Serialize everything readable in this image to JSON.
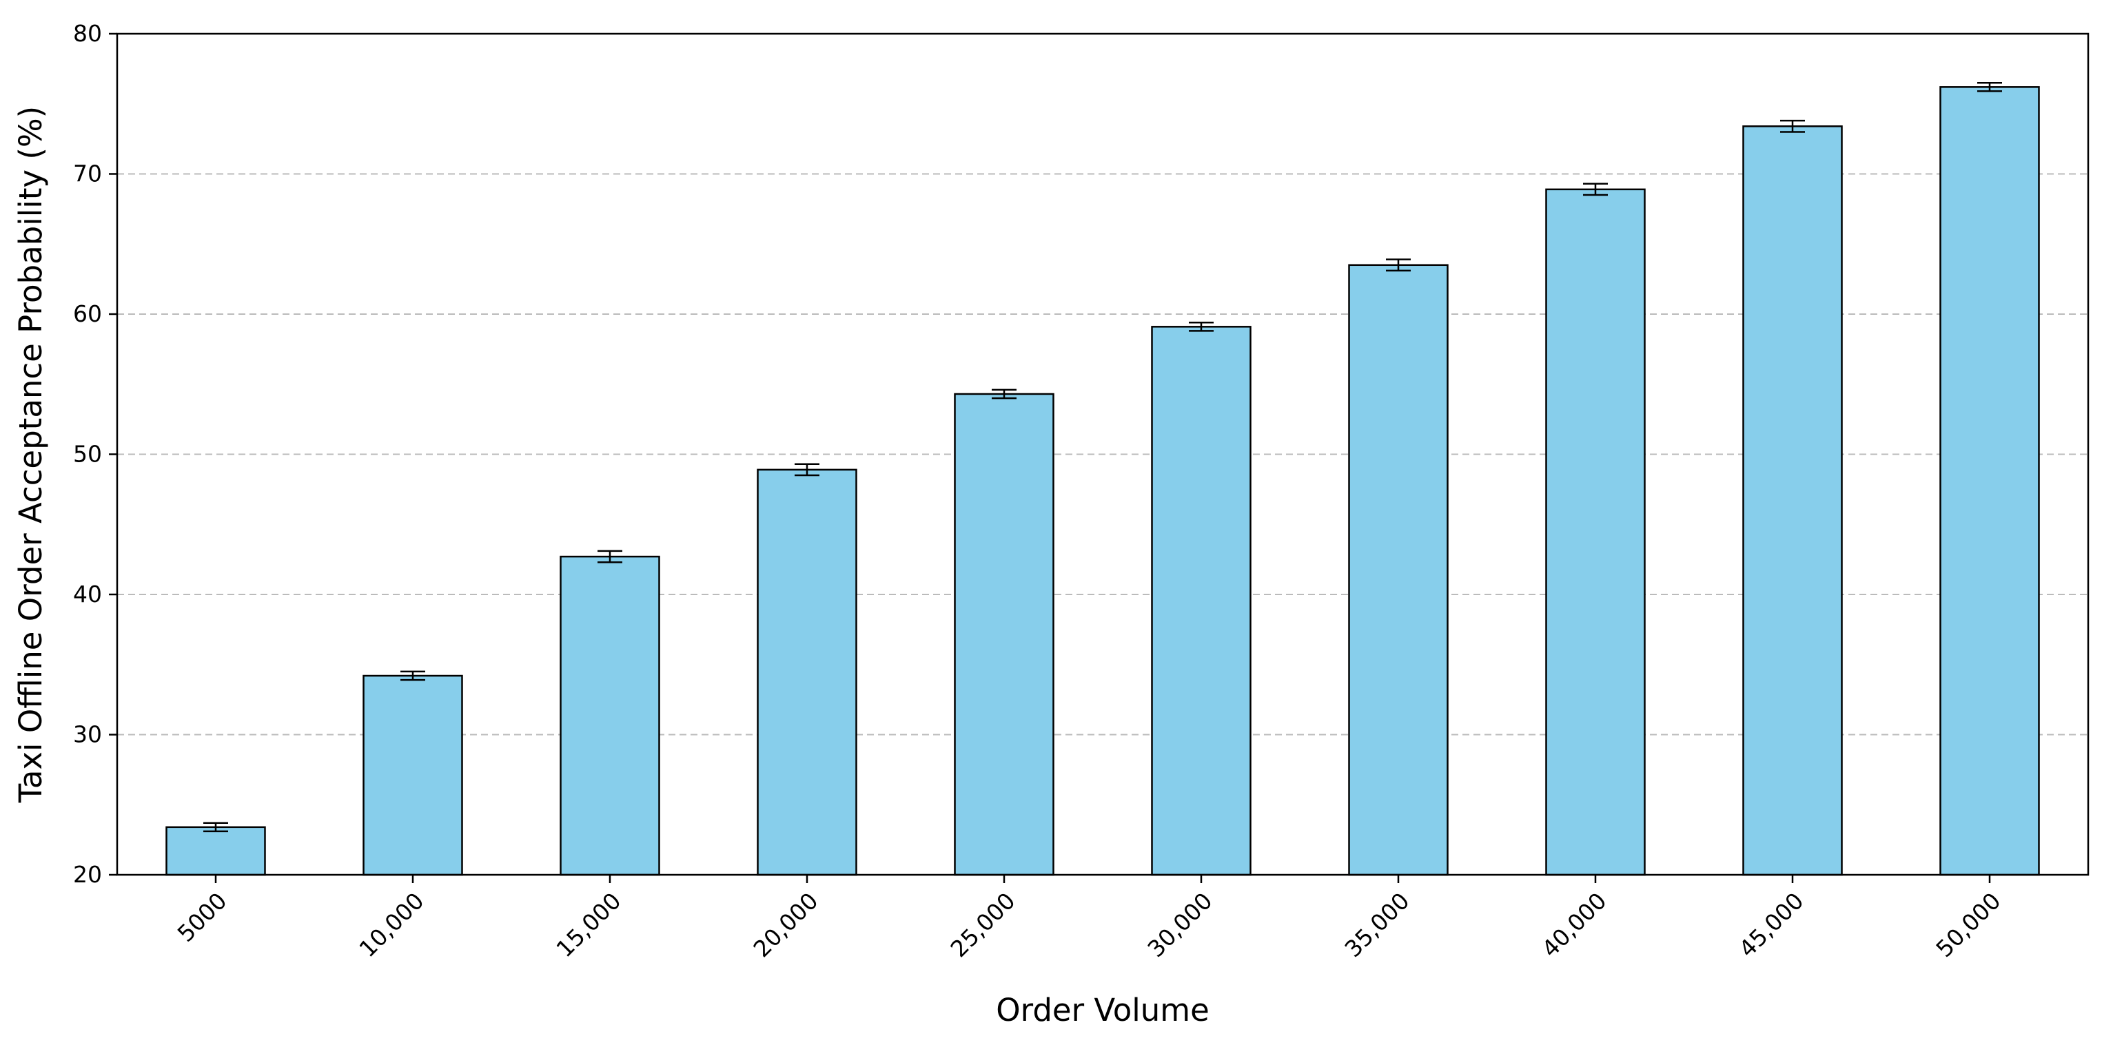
{
  "chart_data": {
    "type": "bar",
    "title": "",
    "xlabel": "Order Volume",
    "ylabel": "Taxi Offline Order Acceptance Probability (%)",
    "categories": [
      "5000",
      "10,000",
      "15,000",
      "20,000",
      "25,000",
      "30,000",
      "35,000",
      "40,000",
      "45,000",
      "50,000"
    ],
    "values": [
      23.4,
      34.2,
      42.7,
      48.9,
      54.3,
      59.1,
      63.5,
      68.9,
      73.4,
      76.2
    ],
    "error": [
      0.3,
      0.3,
      0.4,
      0.4,
      0.3,
      0.3,
      0.4,
      0.4,
      0.4,
      0.3
    ],
    "ylim": [
      20,
      80
    ],
    "yticks": [
      20,
      30,
      40,
      50,
      60,
      70,
      80
    ],
    "grid": "y-dashed",
    "legend": "none",
    "colors": {
      "bar_fill": "#87ceeb",
      "bar_edge": "#000000",
      "grid": "#bbbbbb",
      "error_bar": "#000000",
      "axes": "#000000"
    }
  }
}
